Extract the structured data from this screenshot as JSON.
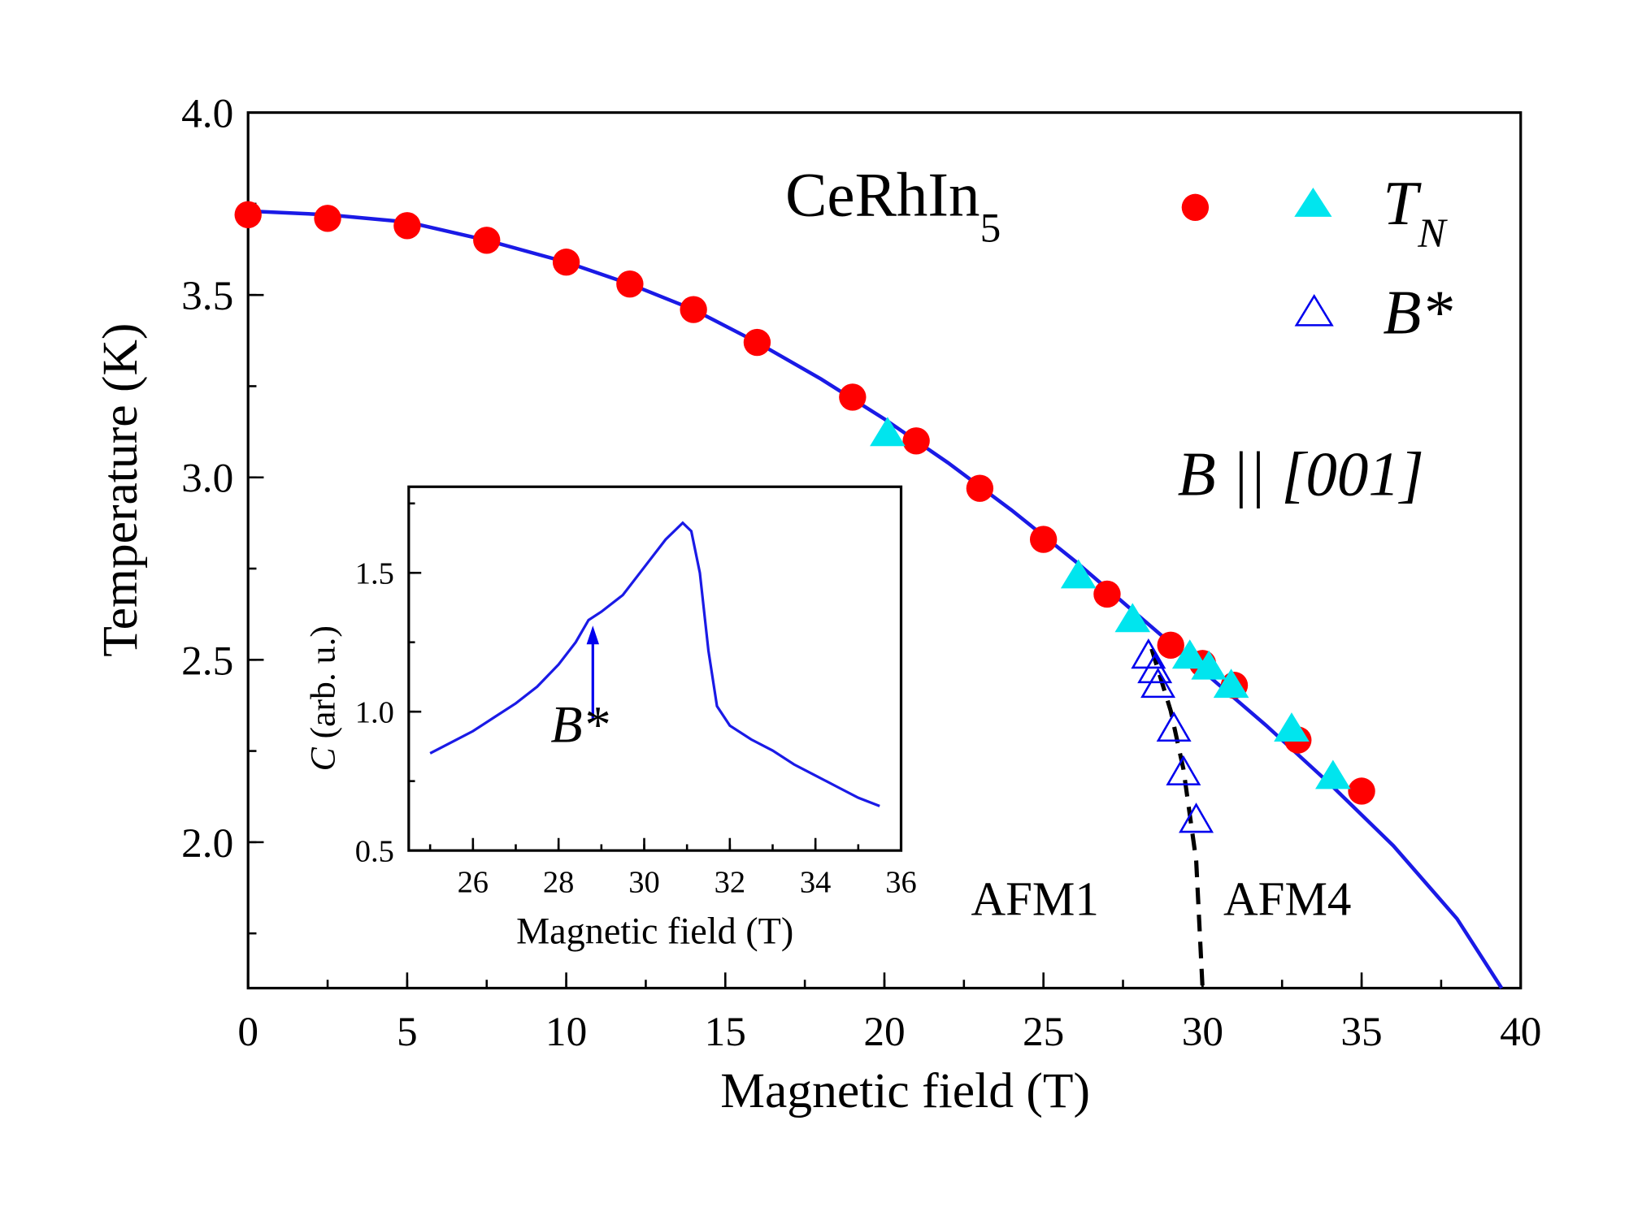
{
  "chart_data": [
    {
      "type": "scatter",
      "xlabel": "Magnetic field (T)",
      "ylabel": "Temperature (K)",
      "xlim": [
        0,
        40
      ],
      "ylim": [
        1.6,
        4.0
      ],
      "xticks": [
        "0",
        "5",
        "10",
        "15",
        "20",
        "25",
        "30",
        "35",
        "40"
      ],
      "yticks": [
        "2.0",
        "2.5",
        "3.0",
        "3.5",
        "4.0"
      ],
      "annotations": {
        "compound": "CeRhIn",
        "compound_sub": "5",
        "field_dir": "B || [001]",
        "phase_left": "AFM1",
        "phase_right": "AFM4"
      },
      "legend": {
        "tn_label": "T",
        "tn_sub": "N",
        "bstar_label": "B*",
        "placement": "top-right"
      },
      "series": [
        {
          "marker": "circle",
          "color": "#ff0000",
          "x": [
            0,
            2.5,
            5,
            7.5,
            10,
            12,
            14,
            16,
            19,
            21,
            23,
            25,
            27,
            29,
            30,
            31,
            33,
            35
          ],
          "y": [
            3.72,
            3.71,
            3.69,
            3.65,
            3.59,
            3.53,
            3.46,
            3.37,
            3.22,
            3.1,
            2.97,
            2.83,
            2.68,
            2.54,
            2.49,
            2.43,
            2.28,
            2.14
          ]
        },
        {
          "marker": "triangle",
          "color": "#00e5ee",
          "x": [
            20.1,
            26.1,
            27.8,
            29.6,
            30.2,
            30.9,
            32.8,
            34.1
          ],
          "y": [
            3.12,
            2.73,
            2.61,
            2.51,
            2.48,
            2.43,
            2.31,
            2.18
          ]
        },
        {
          "marker": "open-triangle",
          "color": "#0000ee",
          "x": [
            28.3,
            28.5,
            28.6,
            29.1,
            29.4,
            29.8
          ],
          "y": [
            2.51,
            2.47,
            2.43,
            2.31,
            2.19,
            2.06
          ]
        },
        {
          "type": "line",
          "style": "solid",
          "color": "#1a1ae6",
          "x": [
            0,
            2.5,
            5,
            7.5,
            10,
            12,
            14,
            16,
            18,
            20,
            22,
            24,
            26,
            28,
            30,
            32,
            34,
            36,
            38,
            39.4
          ],
          "y": [
            3.73,
            3.72,
            3.7,
            3.65,
            3.59,
            3.53,
            3.46,
            3.37,
            3.27,
            3.16,
            3.04,
            2.91,
            2.77,
            2.62,
            2.47,
            2.32,
            2.16,
            1.99,
            1.79,
            1.6
          ]
        },
        {
          "type": "line",
          "style": "dashed",
          "color": "#000000",
          "x": [
            28.4,
            29.0,
            29.4,
            29.8,
            30.0
          ],
          "y": [
            2.53,
            2.36,
            2.2,
            1.95,
            1.6
          ]
        }
      ]
    },
    {
      "type": "line",
      "inset": true,
      "xlabel": "Magnetic field (T)",
      "ylabel": "C (arb. u.)",
      "ylabel_italic": "C",
      "ylabel_rest": " (arb. u.)",
      "xlim": [
        24.5,
        36
      ],
      "ylim": [
        0.5,
        1.81
      ],
      "xticks": [
        "26",
        "28",
        "30",
        "32",
        "34",
        "36"
      ],
      "yticks": [
        "0.5",
        "1.0",
        "1.5"
      ],
      "annotation": {
        "label": "B*",
        "x": 28.8,
        "arrow_from": 0.97,
        "arrow_to": 1.31
      },
      "series": [
        {
          "color": "#1a1ae6",
          "x": [
            25,
            25.5,
            26,
            26.5,
            27,
            27.5,
            28,
            28.4,
            28.7,
            29,
            29.5,
            30,
            30.5,
            30.9,
            31.1,
            31.3,
            31.5,
            31.7,
            32,
            32.5,
            33,
            33.5,
            34,
            34.5,
            35,
            35.5
          ],
          "y": [
            0.85,
            0.89,
            0.93,
            0.98,
            1.03,
            1.09,
            1.17,
            1.25,
            1.33,
            1.36,
            1.42,
            1.52,
            1.62,
            1.68,
            1.65,
            1.5,
            1.22,
            1.02,
            0.95,
            0.9,
            0.86,
            0.81,
            0.77,
            0.73,
            0.69,
            0.66
          ]
        }
      ]
    }
  ]
}
